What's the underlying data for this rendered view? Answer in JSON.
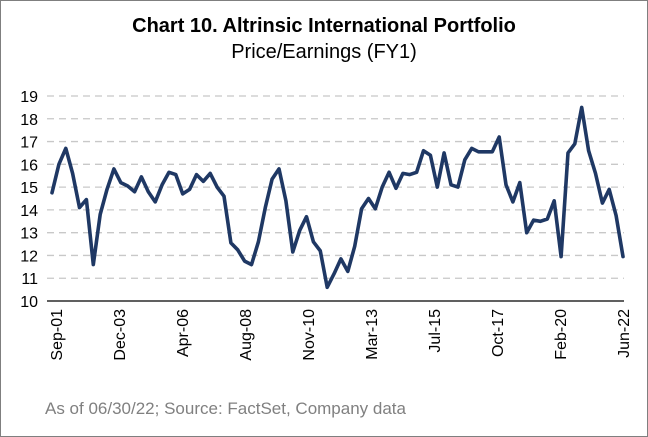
{
  "chart_data": {
    "type": "line",
    "title": "Chart 10. Altrinsic International Portfolio",
    "subtitle": "Price/Earnings (FY1)",
    "xlabel": "",
    "ylabel": "",
    "ylim": [
      10,
      19
    ],
    "yticks": [
      "10",
      "11",
      "12",
      "13",
      "14",
      "15",
      "16",
      "17",
      "18",
      "19"
    ],
    "xticks": [
      "Sep-01",
      "Dec-03",
      "Apr-06",
      "Aug-08",
      "Nov-10",
      "Mar-13",
      "Jul-15",
      "Oct-17",
      "Feb-20",
      "Jun-22"
    ],
    "grid": "horizontal dashed",
    "line_color": "#1f3864",
    "series": [
      {
        "values": [
          14.75,
          16.0,
          16.7,
          15.6,
          14.1,
          14.45,
          11.6,
          13.8,
          14.9,
          15.8,
          15.2,
          15.05,
          14.8,
          15.45,
          14.8,
          14.35,
          15.1,
          15.65,
          15.55,
          14.7,
          14.9,
          15.55,
          15.25,
          15.6,
          15.0,
          14.6,
          12.55,
          12.25,
          11.75,
          11.6,
          12.6,
          14.1,
          15.35,
          15.8,
          14.4,
          12.15,
          13.1,
          13.7,
          12.6,
          12.2,
          10.6,
          11.2,
          11.85,
          11.3,
          12.4,
          14.05,
          14.5,
          14.05,
          15.0,
          15.65,
          14.95,
          15.6,
          15.55,
          15.65,
          16.6,
          16.4,
          15.0,
          16.5,
          15.1,
          15.0,
          16.2,
          16.7,
          16.55,
          16.55,
          16.55,
          17.2,
          15.1,
          14.35,
          15.2,
          13.0,
          13.55,
          13.5,
          13.6,
          14.4,
          11.95,
          16.5,
          16.9,
          18.5,
          16.6,
          15.6,
          14.3,
          14.9,
          13.75,
          11.95
        ]
      }
    ]
  },
  "source": "As of 06/30/22; Source: FactSet, Company data"
}
